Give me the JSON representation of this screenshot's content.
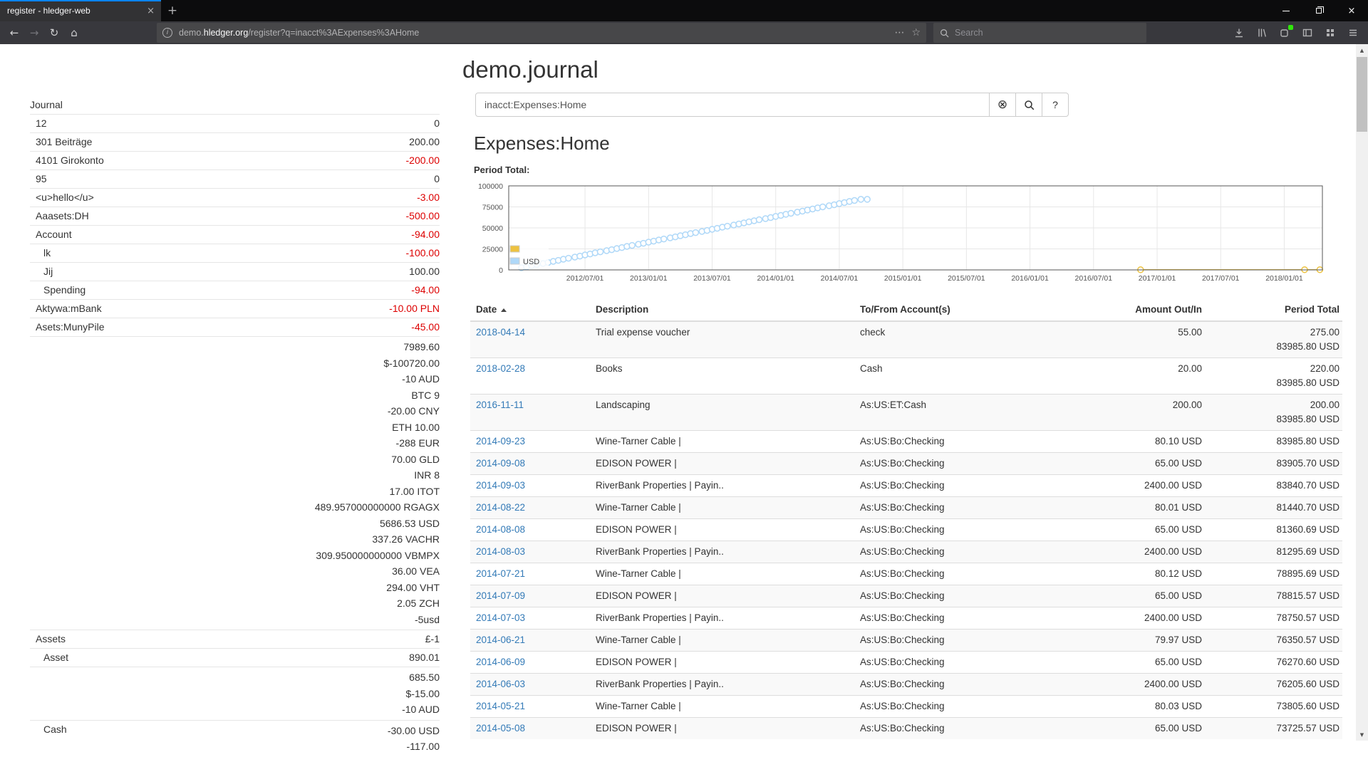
{
  "browser": {
    "tab_title": "register - hledger-web",
    "url_prefix": "demo.",
    "url_domain": "hledger.org",
    "url_path": "/register?q=inacct%3AExpenses%3AHome",
    "search_placeholder": "Search"
  },
  "glyphs": {
    "close": "×",
    "plus": "+",
    "back": "←",
    "forward": "→",
    "reload": "↻",
    "home": "⌂",
    "more": "⋯",
    "star": "☆",
    "info": "i",
    "clear": "⊗",
    "help": "?",
    "up": "▲",
    "down": "▼"
  },
  "page": {
    "title": "demo.journal",
    "query": "inacct:Expenses:Home",
    "heading": "Expenses:Home",
    "chart_label": "Period Total:"
  },
  "sidebar": {
    "heading": "Journal",
    "items": [
      {
        "name": "12",
        "indent": 1,
        "amounts": [
          {
            "t": "0"
          }
        ]
      },
      {
        "name": "301 Beiträge",
        "indent": 1,
        "amounts": [
          {
            "t": "200.00"
          }
        ]
      },
      {
        "name": "4101 Girokonto",
        "indent": 1,
        "amounts": [
          {
            "t": "-200.00",
            "neg": true
          }
        ]
      },
      {
        "name": "95",
        "indent": 1,
        "amounts": [
          {
            "t": "0"
          }
        ]
      },
      {
        "name": "<u>hello</u>",
        "indent": 1,
        "amounts": [
          {
            "t": "-3.00",
            "neg": true
          }
        ]
      },
      {
        "name": "Aaasets:DH",
        "indent": 1,
        "amounts": [
          {
            "t": "-500.00",
            "neg": true
          }
        ]
      },
      {
        "name": "Account",
        "indent": 1,
        "amounts": [
          {
            "t": "-94.00",
            "neg": true
          }
        ]
      },
      {
        "name": "lk",
        "indent": 2,
        "amounts": [
          {
            "t": "-100.00",
            "neg": true
          }
        ]
      },
      {
        "name": "Jij",
        "indent": 2,
        "amounts": [
          {
            "t": "100.00"
          }
        ]
      },
      {
        "name": "Spending",
        "indent": 2,
        "amounts": [
          {
            "t": "-94.00",
            "neg": true
          }
        ]
      },
      {
        "name": "Aktywa:mBank",
        "indent": 1,
        "amounts": [
          {
            "t": "-10.00 PLN",
            "neg": true
          }
        ]
      },
      {
        "name": "Asets:MunyPile",
        "indent": 1,
        "amounts": [
          {
            "t": "-45.00",
            "neg": true
          }
        ]
      },
      {
        "name": "",
        "indent": 1,
        "amounts": [
          {
            "t": "7989.60"
          },
          {
            "t": "$-100720.00"
          },
          {
            "t": "-10 AUD"
          },
          {
            "t": "BTC 9"
          },
          {
            "t": "-20.00 CNY"
          },
          {
            "t": "ETH 10.00"
          },
          {
            "t": "-288 EUR"
          },
          {
            "t": "70.00 GLD"
          },
          {
            "t": "INR 8"
          },
          {
            "t": "17.00 ITOT"
          },
          {
            "t": "489.957000000000 RGAGX"
          },
          {
            "t": "5686.53 USD"
          },
          {
            "t": "337.26 VACHR"
          },
          {
            "t": "309.950000000000 VBMPX"
          },
          {
            "t": "36.00 VEA"
          },
          {
            "t": "294.00 VHT"
          },
          {
            "t": "2.05 ZCH"
          },
          {
            "t": "-5usd"
          }
        ]
      },
      {
        "name": "Assets",
        "indent": 1,
        "amounts": [
          {
            "t": "£-1"
          }
        ]
      },
      {
        "name": "Asset",
        "indent": 2,
        "amounts": [
          {
            "t": "890.01"
          }
        ]
      },
      {
        "name": "",
        "indent": 2,
        "amounts": [
          {
            "t": "685.50"
          },
          {
            "t": "$-15.00"
          },
          {
            "t": "-10 AUD"
          }
        ]
      },
      {
        "name": "Cash",
        "indent": 2,
        "amounts": [
          {
            "t": "-30.00 USD"
          },
          {
            "t": "-117.00"
          }
        ]
      }
    ]
  },
  "register": {
    "columns": [
      "Date",
      "Description",
      "To/From Account(s)",
      "Amount Out/In",
      "Period Total"
    ],
    "rows": [
      {
        "date": "2018-04-14",
        "description": "Trial expense voucher",
        "account": "check",
        "amount": "55.00",
        "total": "275.00",
        "total2": "83985.80 USD"
      },
      {
        "date": "2018-02-28",
        "description": "Books",
        "account": "Cash",
        "amount": "20.00",
        "total": "220.00",
        "total2": "83985.80 USD"
      },
      {
        "date": "2016-11-11",
        "description": "Landscaping",
        "account": "As:US:ET:Cash",
        "amount": "200.00",
        "total": "200.00",
        "total2": "83985.80 USD"
      },
      {
        "date": "2014-09-23",
        "description": "Wine-Tarner Cable |",
        "account": "As:US:Bo:Checking",
        "amount": "80.10 USD",
        "total": "83985.80 USD"
      },
      {
        "date": "2014-09-08",
        "description": "EDISON POWER |",
        "account": "As:US:Bo:Checking",
        "amount": "65.00 USD",
        "total": "83905.70 USD"
      },
      {
        "date": "2014-09-03",
        "description": "RiverBank Properties | Payin..",
        "account": "As:US:Bo:Checking",
        "amount": "2400.00 USD",
        "total": "83840.70 USD"
      },
      {
        "date": "2014-08-22",
        "description": "Wine-Tarner Cable |",
        "account": "As:US:Bo:Checking",
        "amount": "80.01 USD",
        "total": "81440.70 USD"
      },
      {
        "date": "2014-08-08",
        "description": "EDISON POWER |",
        "account": "As:US:Bo:Checking",
        "amount": "65.00 USD",
        "total": "81360.69 USD"
      },
      {
        "date": "2014-08-03",
        "description": "RiverBank Properties | Payin..",
        "account": "As:US:Bo:Checking",
        "amount": "2400.00 USD",
        "total": "81295.69 USD"
      },
      {
        "date": "2014-07-21",
        "description": "Wine-Tarner Cable |",
        "account": "As:US:Bo:Checking",
        "amount": "80.12 USD",
        "total": "78895.69 USD"
      },
      {
        "date": "2014-07-09",
        "description": "EDISON POWER |",
        "account": "As:US:Bo:Checking",
        "amount": "65.00 USD",
        "total": "78815.57 USD"
      },
      {
        "date": "2014-07-03",
        "description": "RiverBank Properties | Payin..",
        "account": "As:US:Bo:Checking",
        "amount": "2400.00 USD",
        "total": "78750.57 USD"
      },
      {
        "date": "2014-06-21",
        "description": "Wine-Tarner Cable |",
        "account": "As:US:Bo:Checking",
        "amount": "79.97 USD",
        "total": "76350.57 USD"
      },
      {
        "date": "2014-06-09",
        "description": "EDISON POWER |",
        "account": "As:US:Bo:Checking",
        "amount": "65.00 USD",
        "total": "76270.60 USD"
      },
      {
        "date": "2014-06-03",
        "description": "RiverBank Properties | Payin..",
        "account": "As:US:Bo:Checking",
        "amount": "2400.00 USD",
        "total": "76205.60 USD"
      },
      {
        "date": "2014-05-21",
        "description": "Wine-Tarner Cable |",
        "account": "As:US:Bo:Checking",
        "amount": "80.03 USD",
        "total": "73805.60 USD"
      },
      {
        "date": "2014-05-08",
        "description": "EDISON POWER |",
        "account": "As:US:Bo:Checking",
        "amount": "65.00 USD",
        "total": "73725.57 USD"
      }
    ]
  },
  "chart_data": {
    "type": "scatter",
    "title": "Period Total:",
    "x_axis": {
      "min": 2011.9,
      "max": 2018.3,
      "ticks": [
        {
          "v": 2012.5,
          "label": "2012/07/01"
        },
        {
          "v": 2013.0,
          "label": "2013/01/01"
        },
        {
          "v": 2013.5,
          "label": "2013/07/01"
        },
        {
          "v": 2014.0,
          "label": "2014/01/01"
        },
        {
          "v": 2014.5,
          "label": "2014/07/01"
        },
        {
          "v": 2015.0,
          "label": "2015/01/01"
        },
        {
          "v": 2015.5,
          "label": "2015/07/01"
        },
        {
          "v": 2016.0,
          "label": "2016/01/01"
        },
        {
          "v": 2016.5,
          "label": "2016/07/01"
        },
        {
          "v": 2017.0,
          "label": "2017/01/01"
        },
        {
          "v": 2017.5,
          "label": "2017/07/01"
        },
        {
          "v": 2018.0,
          "label": "2018/01/01"
        }
      ]
    },
    "y_axis": {
      "min": 0,
      "max": 100000,
      "ticks": [
        0,
        25000,
        50000,
        75000,
        100000
      ]
    },
    "legend": [
      {
        "label": "",
        "color": "#edc240"
      },
      {
        "label": "USD",
        "color": "#afd8f8"
      }
    ],
    "series": [
      {
        "name": "USD",
        "color": "#afd8f8",
        "points": [
          [
            2012.0,
            2500
          ],
          [
            2012.04,
            3700
          ],
          [
            2012.08,
            5046
          ],
          [
            2012.12,
            6246
          ],
          [
            2012.17,
            7592
          ],
          [
            2012.21,
            8792
          ],
          [
            2012.25,
            10138
          ],
          [
            2012.29,
            11338
          ],
          [
            2012.33,
            12684
          ],
          [
            2012.37,
            13884
          ],
          [
            2012.42,
            15230
          ],
          [
            2012.46,
            16430
          ],
          [
            2012.5,
            17776
          ],
          [
            2012.54,
            18976
          ],
          [
            2012.58,
            20322
          ],
          [
            2012.62,
            21522
          ],
          [
            2012.67,
            22868
          ],
          [
            2012.71,
            24068
          ],
          [
            2012.75,
            25414
          ],
          [
            2012.79,
            26614
          ],
          [
            2012.83,
            27960
          ],
          [
            2012.87,
            29160
          ],
          [
            2012.92,
            30506
          ],
          [
            2012.96,
            31706
          ],
          [
            2013.0,
            33052
          ],
          [
            2013.04,
            34252
          ],
          [
            2013.08,
            35598
          ],
          [
            2013.12,
            36798
          ],
          [
            2013.17,
            38144
          ],
          [
            2013.21,
            39344
          ],
          [
            2013.25,
            40690
          ],
          [
            2013.29,
            41890
          ],
          [
            2013.33,
            43236
          ],
          [
            2013.37,
            44436
          ],
          [
            2013.42,
            45782
          ],
          [
            2013.46,
            46982
          ],
          [
            2013.5,
            48328
          ],
          [
            2013.54,
            49528
          ],
          [
            2013.58,
            50874
          ],
          [
            2013.62,
            52074
          ],
          [
            2013.67,
            53420
          ],
          [
            2013.71,
            54620
          ],
          [
            2013.75,
            55966
          ],
          [
            2013.79,
            57166
          ],
          [
            2013.83,
            58512
          ],
          [
            2013.87,
            59712
          ],
          [
            2013.92,
            61058
          ],
          [
            2013.96,
            62258
          ],
          [
            2014.0,
            63604
          ],
          [
            2014.04,
            64804
          ],
          [
            2014.08,
            66150
          ],
          [
            2014.12,
            67350
          ],
          [
            2014.17,
            68696
          ],
          [
            2014.21,
            69896
          ],
          [
            2014.25,
            71242
          ],
          [
            2014.29,
            72442
          ],
          [
            2014.33,
            73788
          ],
          [
            2014.37,
            74988
          ],
          [
            2014.42,
            76334
          ],
          [
            2014.46,
            77534
          ],
          [
            2014.5,
            78880
          ],
          [
            2014.54,
            80080
          ],
          [
            2014.58,
            81426
          ],
          [
            2014.62,
            82626
          ],
          [
            2014.67,
            83972
          ],
          [
            2014.72,
            83986
          ]
        ]
      },
      {
        "name": "",
        "color": "#edc240",
        "points": [
          [
            2016.87,
            200
          ],
          [
            2018.16,
            220
          ],
          [
            2018.28,
            275
          ]
        ]
      }
    ]
  }
}
